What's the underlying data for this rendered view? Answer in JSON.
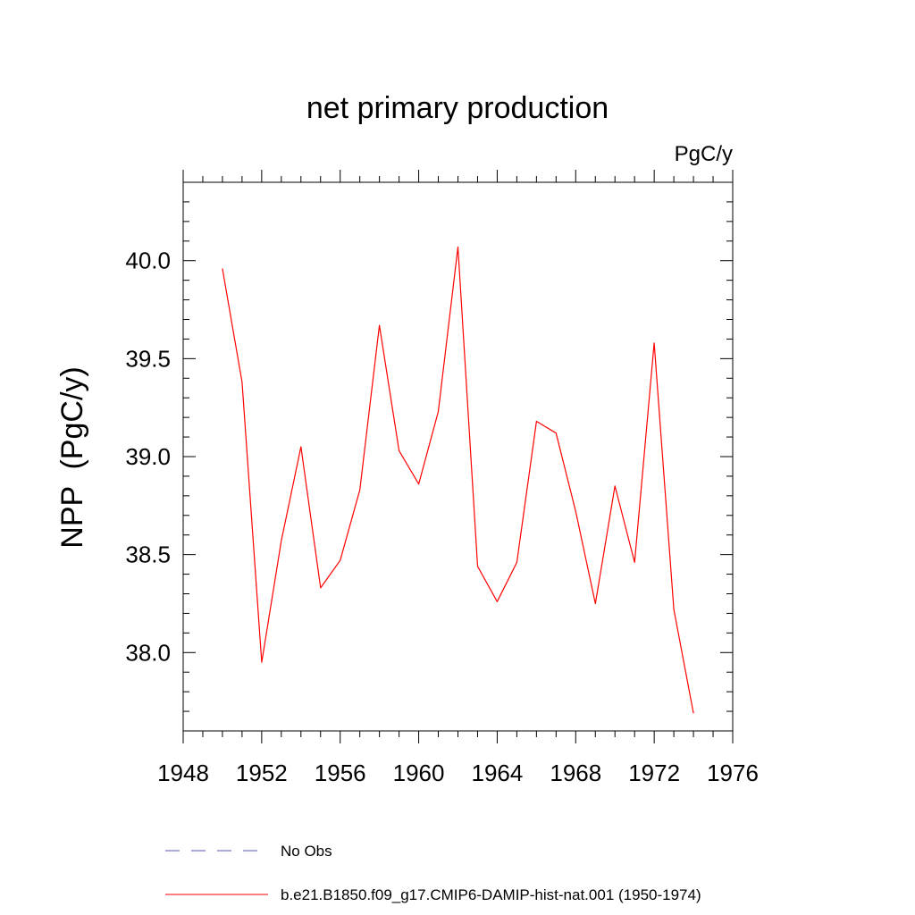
{
  "chart_data": {
    "type": "line",
    "title": "net primary production",
    "units": "PgC/y",
    "ylabel": "NPP  (PgC/y)",
    "xlabel": "",
    "xlim": [
      1948,
      1976
    ],
    "ylim": [
      37.6,
      40.4
    ],
    "x_ticks": [
      1948,
      1952,
      1956,
      1960,
      1964,
      1968,
      1972,
      1976
    ],
    "x_tick_labels": [
      "1948",
      "1952",
      "1956",
      "1960",
      "1964",
      "1968",
      "1972",
      "1976"
    ],
    "y_ticks": [
      38.0,
      38.5,
      39.0,
      39.5,
      40.0
    ],
    "y_tick_labels": [
      "38.0",
      "38.5",
      "39.0",
      "39.5",
      "40.0"
    ],
    "grid": false,
    "legend_position": "bottom",
    "series": [
      {
        "name": "b.e21.B1850.f09_g17.CMIP6-DAMIP-hist-nat.001 (1950-1974)",
        "color": "#ff0000",
        "style": "solid",
        "x": [
          1950,
          1951,
          1952,
          1953,
          1954,
          1955,
          1956,
          1957,
          1958,
          1959,
          1960,
          1961,
          1962,
          1963,
          1964,
          1965,
          1966,
          1967,
          1968,
          1969,
          1970,
          1971,
          1972,
          1973,
          1974
        ],
        "y": [
          39.96,
          39.38,
          37.95,
          38.57,
          39.05,
          38.33,
          38.47,
          38.83,
          39.67,
          39.03,
          38.86,
          39.23,
          40.07,
          38.44,
          38.26,
          38.46,
          39.18,
          39.12,
          38.72,
          38.25,
          38.85,
          38.46,
          39.58,
          38.22,
          37.69
        ]
      }
    ],
    "legend": [
      {
        "label": "No Obs",
        "color": "#5555bb",
        "style": "dashed"
      },
      {
        "label": "b.e21.B1850.f09_g17.CMIP6-DAMIP-hist-nat.001 (1950-1974)",
        "color": "#ff0000",
        "style": "solid"
      }
    ]
  }
}
